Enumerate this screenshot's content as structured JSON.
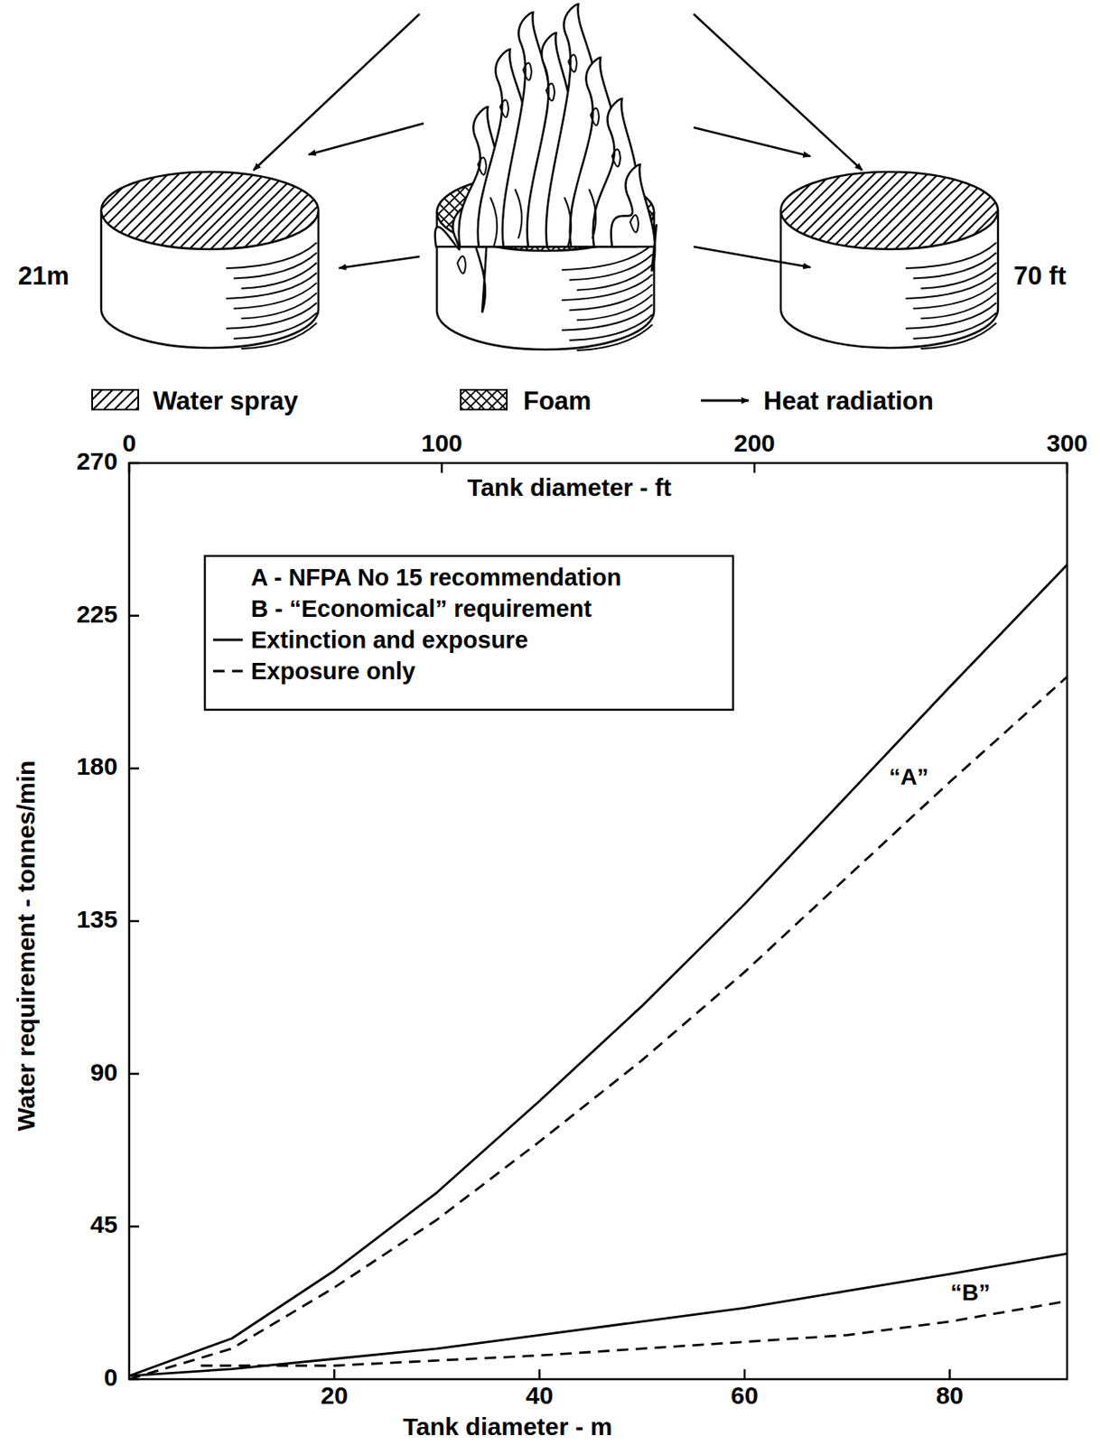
{
  "chart_data": {
    "type": "line",
    "illustration": {
      "left_height_label": "21m",
      "right_height_label": "70 ft",
      "key": [
        "Water spray",
        "Foam",
        "Heat radiation"
      ]
    },
    "x_label": "Tank diameter - m",
    "x2_label": "Tank diameter - ft",
    "y_label": "Water requirement - tonnes/min",
    "xlim": [
      0,
      91.44
    ],
    "xticks": [
      20,
      40,
      60,
      80
    ],
    "x2lim": [
      0,
      300
    ],
    "x2ticks": [
      0,
      100,
      200,
      300
    ],
    "ylim": [
      0,
      270
    ],
    "yticks": [
      0,
      45,
      90,
      135,
      180,
      225,
      270
    ],
    "grid": false,
    "legend": "upper left",
    "legend_items": [
      {
        "text": "A - NFPA No 15 recommendation"
      },
      {
        "text": "B - “Economical” requirement"
      },
      {
        "text": "Extinction and exposure",
        "line_style": "solid"
      },
      {
        "text": "Exposure only",
        "line_style": "dashed"
      }
    ],
    "series": [
      {
        "line_style": "solid",
        "color": "#000000",
        "x": [
          0,
          10,
          20,
          30,
          40,
          50,
          60,
          70,
          80,
          91.44
        ],
        "values": [
          1,
          12,
          32,
          55,
          82,
          110,
          140,
          172,
          204,
          240
        ]
      },
      {
        "line_style": "dashed",
        "color": "#000000",
        "x": [
          0,
          10,
          20,
          30,
          40,
          50,
          60,
          70,
          80,
          91.44
        ],
        "values": [
          0,
          9,
          27,
          47,
          70,
          94,
          120,
          148,
          176,
          207
        ]
      },
      {
        "line_style": "solid",
        "color": "#000000",
        "x": [
          0,
          10,
          20,
          30,
          40,
          50,
          60,
          70,
          80,
          91.44
        ],
        "values": [
          1,
          3,
          6,
          9,
          13,
          17,
          21,
          26,
          31,
          37
        ]
      },
      {
        "line_style": "dashed",
        "color": "#000000",
        "x": [
          7,
          20,
          40,
          60,
          70,
          80,
          91.44
        ],
        "values": [
          4,
          4,
          7,
          11,
          13,
          17,
          23
        ]
      }
    ],
    "annotations": [
      {
        "text": "“A”",
        "x": 76,
        "y": 177
      },
      {
        "text": "“B”",
        "x": 82,
        "y": 25
      }
    ]
  }
}
